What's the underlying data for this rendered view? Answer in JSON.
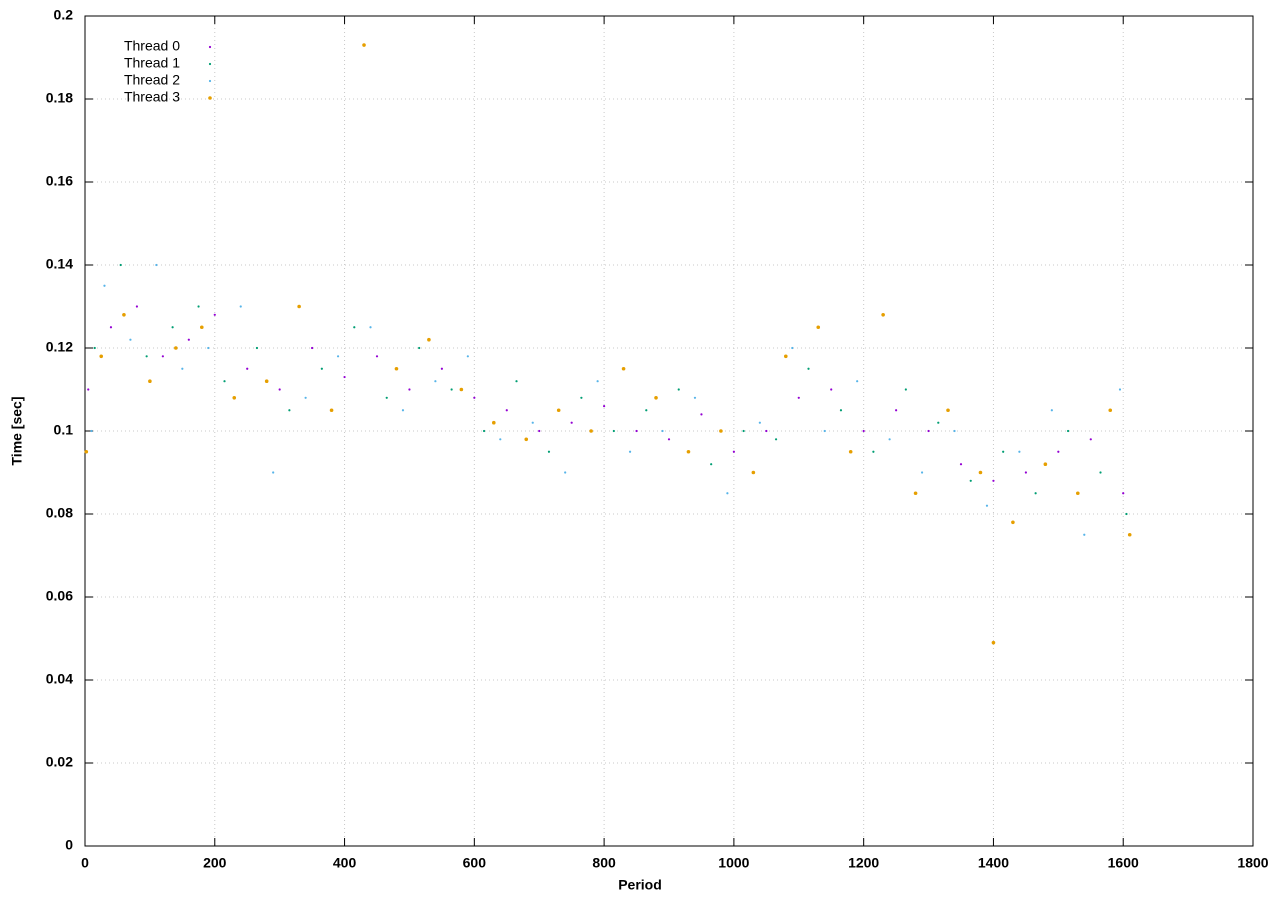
{
  "chart_data": {
    "type": "scatter",
    "xlabel": "Period",
    "ylabel": "Time [sec]",
    "xlim": [
      0,
      1800
    ],
    "ylim": [
      0,
      0.2
    ],
    "xticks": [
      0,
      200,
      400,
      600,
      800,
      1000,
      1200,
      1400,
      1600,
      1800
    ],
    "yticks": [
      0,
      0.02,
      0.04,
      0.06,
      0.08,
      0.1,
      0.12,
      0.14,
      0.16,
      0.18,
      0.2
    ],
    "grid": true,
    "legend": "top-left",
    "series": [
      {
        "name": "Thread 0",
        "color": "#9400d3",
        "x": [
          5,
          40,
          80,
          120,
          160,
          200,
          250,
          300,
          350,
          400,
          450,
          500,
          550,
          600,
          650,
          700,
          750,
          800,
          850,
          900,
          950,
          1000,
          1050,
          1100,
          1150,
          1200,
          1250,
          1300,
          1350,
          1400,
          1450,
          1500,
          1550,
          1600
        ],
        "values": [
          0.11,
          0.125,
          0.13,
          0.118,
          0.122,
          0.128,
          0.115,
          0.11,
          0.12,
          0.113,
          0.118,
          0.11,
          0.115,
          0.108,
          0.105,
          0.1,
          0.102,
          0.106,
          0.1,
          0.098,
          0.104,
          0.095,
          0.1,
          0.108,
          0.11,
          0.1,
          0.105,
          0.1,
          0.092,
          0.088,
          0.09,
          0.095,
          0.098,
          0.085
        ]
      },
      {
        "name": "Thread 1",
        "color": "#009e73",
        "x": [
          15,
          55,
          95,
          135,
          175,
          215,
          265,
          315,
          365,
          415,
          465,
          515,
          565,
          615,
          665,
          715,
          765,
          815,
          865,
          915,
          965,
          1015,
          1065,
          1115,
          1165,
          1215,
          1265,
          1315,
          1365,
          1415,
          1465,
          1515,
          1565,
          1605
        ],
        "values": [
          0.12,
          0.14,
          0.118,
          0.125,
          0.13,
          0.112,
          0.12,
          0.105,
          0.115,
          0.125,
          0.108,
          0.12,
          0.11,
          0.1,
          0.112,
          0.095,
          0.108,
          0.1,
          0.105,
          0.11,
          0.092,
          0.1,
          0.098,
          0.115,
          0.105,
          0.095,
          0.11,
          0.102,
          0.088,
          0.095,
          0.085,
          0.1,
          0.09,
          0.08
        ]
      },
      {
        "name": "Thread 2",
        "color": "#56b4e9",
        "x": [
          10,
          30,
          70,
          110,
          150,
          190,
          240,
          290,
          340,
          390,
          440,
          490,
          540,
          590,
          640,
          690,
          740,
          790,
          840,
          890,
          940,
          990,
          1040,
          1090,
          1140,
          1190,
          1240,
          1290,
          1340,
          1390,
          1440,
          1490,
          1540,
          1595
        ],
        "values": [
          0.1,
          0.135,
          0.122,
          0.14,
          0.115,
          0.12,
          0.13,
          0.09,
          0.108,
          0.118,
          0.125,
          0.105,
          0.112,
          0.118,
          0.098,
          0.102,
          0.09,
          0.112,
          0.095,
          0.1,
          0.108,
          0.085,
          0.102,
          0.12,
          0.1,
          0.112,
          0.098,
          0.09,
          0.1,
          0.082,
          0.095,
          0.105,
          0.075,
          0.11
        ]
      },
      {
        "name": "Thread 3",
        "color": "#e69f00",
        "x": [
          2,
          25,
          60,
          100,
          140,
          180,
          230,
          280,
          330,
          380,
          430,
          480,
          530,
          580,
          630,
          680,
          730,
          780,
          830,
          880,
          930,
          980,
          1030,
          1080,
          1130,
          1180,
          1230,
          1280,
          1330,
          1380,
          1400,
          1430,
          1480,
          1530,
          1580,
          1610
        ],
        "values": [
          0.095,
          0.118,
          0.128,
          0.112,
          0.12,
          0.125,
          0.108,
          0.112,
          0.13,
          0.105,
          0.193,
          0.115,
          0.122,
          0.11,
          0.102,
          0.098,
          0.105,
          0.1,
          0.115,
          0.108,
          0.095,
          0.1,
          0.09,
          0.118,
          0.125,
          0.095,
          0.128,
          0.085,
          0.105,
          0.09,
          0.049,
          0.078,
          0.092,
          0.085,
          0.105,
          0.075
        ]
      }
    ]
  }
}
